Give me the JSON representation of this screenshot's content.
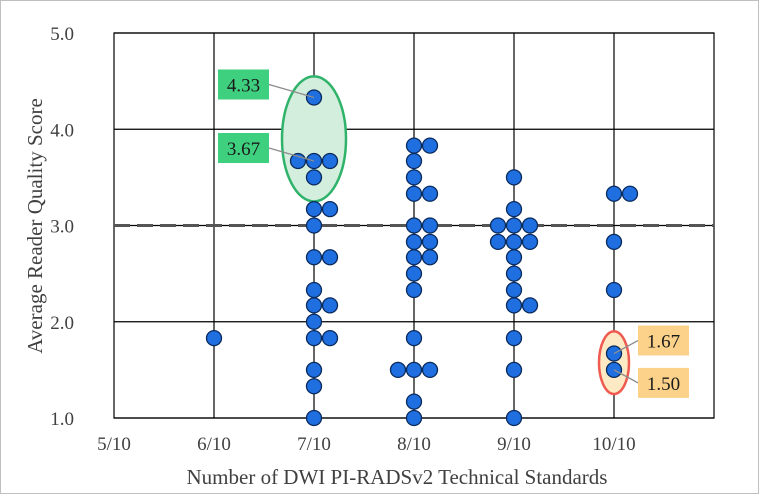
{
  "chart_data": {
    "type": "scatter",
    "title": "",
    "xlabel": "Number of DWI PI-RADSv2 Technical Standards",
    "ylabel": "Average Reader Quality Score",
    "x_categories": [
      "5/10",
      "6/10",
      "7/10",
      "8/10",
      "9/10",
      "10/10"
    ],
    "y_ticks": [
      "1.0",
      "2.0",
      "3.0",
      "4.0",
      "5.0"
    ],
    "ylim": [
      1.0,
      5.0
    ],
    "grid": true,
    "reference_line": {
      "y": 3.0,
      "style": "dashed"
    },
    "point_color": "#1f6fe0",
    "points": [
      {
        "x": "6/10",
        "y": 1.83
      },
      {
        "x": "7/10",
        "y": 4.33
      },
      {
        "x": "7/10",
        "y": 3.67,
        "offset": -1
      },
      {
        "x": "7/10",
        "y": 3.67,
        "offset": 0
      },
      {
        "x": "7/10",
        "y": 3.67,
        "offset": 1
      },
      {
        "x": "7/10",
        "y": 3.5
      },
      {
        "x": "7/10",
        "y": 3.17,
        "offset": 0
      },
      {
        "x": "7/10",
        "y": 3.17,
        "offset": 1
      },
      {
        "x": "7/10",
        "y": 3.0
      },
      {
        "x": "7/10",
        "y": 2.67,
        "offset": 0
      },
      {
        "x": "7/10",
        "y": 2.67,
        "offset": 1
      },
      {
        "x": "7/10",
        "y": 2.33
      },
      {
        "x": "7/10",
        "y": 2.17,
        "offset": 0
      },
      {
        "x": "7/10",
        "y": 2.17,
        "offset": 1
      },
      {
        "x": "7/10",
        "y": 2.0
      },
      {
        "x": "7/10",
        "y": 1.83,
        "offset": 0
      },
      {
        "x": "7/10",
        "y": 1.83,
        "offset": 1
      },
      {
        "x": "7/10",
        "y": 1.5
      },
      {
        "x": "7/10",
        "y": 1.33
      },
      {
        "x": "7/10",
        "y": 1.0
      },
      {
        "x": "8/10",
        "y": 3.83,
        "offset": 0
      },
      {
        "x": "8/10",
        "y": 3.83,
        "offset": 1
      },
      {
        "x": "8/10",
        "y": 3.67
      },
      {
        "x": "8/10",
        "y": 3.5
      },
      {
        "x": "8/10",
        "y": 3.33,
        "offset": 0
      },
      {
        "x": "8/10",
        "y": 3.33,
        "offset": 1
      },
      {
        "x": "8/10",
        "y": 3.0,
        "offset": 0
      },
      {
        "x": "8/10",
        "y": 3.0,
        "offset": 1
      },
      {
        "x": "8/10",
        "y": 2.83,
        "offset": 0
      },
      {
        "x": "8/10",
        "y": 2.83,
        "offset": 1
      },
      {
        "x": "8/10",
        "y": 2.67,
        "offset": 0
      },
      {
        "x": "8/10",
        "y": 2.67,
        "offset": 1
      },
      {
        "x": "8/10",
        "y": 2.5
      },
      {
        "x": "8/10",
        "y": 2.33
      },
      {
        "x": "8/10",
        "y": 1.83
      },
      {
        "x": "8/10",
        "y": 1.5,
        "offset": -1
      },
      {
        "x": "8/10",
        "y": 1.5,
        "offset": 0
      },
      {
        "x": "8/10",
        "y": 1.5,
        "offset": 1
      },
      {
        "x": "8/10",
        "y": 1.17
      },
      {
        "x": "8/10",
        "y": 1.0
      },
      {
        "x": "9/10",
        "y": 3.5
      },
      {
        "x": "9/10",
        "y": 3.17
      },
      {
        "x": "9/10",
        "y": 3.0,
        "offset": -1
      },
      {
        "x": "9/10",
        "y": 3.0,
        "offset": 0
      },
      {
        "x": "9/10",
        "y": 3.0,
        "offset": 1
      },
      {
        "x": "9/10",
        "y": 2.83,
        "offset": -1
      },
      {
        "x": "9/10",
        "y": 2.83,
        "offset": 0
      },
      {
        "x": "9/10",
        "y": 2.83,
        "offset": 1
      },
      {
        "x": "9/10",
        "y": 2.67
      },
      {
        "x": "9/10",
        "y": 2.5
      },
      {
        "x": "9/10",
        "y": 2.33
      },
      {
        "x": "9/10",
        "y": 2.17,
        "offset": 0
      },
      {
        "x": "9/10",
        "y": 2.17,
        "offset": 1
      },
      {
        "x": "9/10",
        "y": 1.83
      },
      {
        "x": "9/10",
        "y": 1.5
      },
      {
        "x": "9/10",
        "y": 1.0
      },
      {
        "x": "10/10",
        "y": 3.33,
        "offset": 0
      },
      {
        "x": "10/10",
        "y": 3.33,
        "offset": 1
      },
      {
        "x": "10/10",
        "y": 2.83
      },
      {
        "x": "10/10",
        "y": 2.33
      },
      {
        "x": "10/10",
        "y": 1.67
      },
      {
        "x": "10/10",
        "y": 1.5
      }
    ],
    "highlights": [
      {
        "x": "7/10",
        "y_min": 3.25,
        "y_max": 4.55,
        "fill": "#d4eedd",
        "stroke": "#2fb36a"
      },
      {
        "x": "10/10",
        "y_min": 1.25,
        "y_max": 1.9,
        "fill": "#fde9c4",
        "stroke": "#ef5b50"
      }
    ],
    "callouts": [
      {
        "text": "4.33",
        "x": "7/10",
        "y": 4.33,
        "side": "left",
        "fill": "#3ecf7f"
      },
      {
        "text": "3.67",
        "x": "7/10",
        "y": 3.67,
        "side": "left",
        "fill": "#3ecf7f"
      },
      {
        "text": "1.67",
        "x": "10/10",
        "y": 1.67,
        "side": "right",
        "fill": "#fcd28b"
      },
      {
        "text": "1.50",
        "x": "10/10",
        "y": 1.5,
        "side": "right",
        "fill": "#fcd28b"
      }
    ]
  }
}
